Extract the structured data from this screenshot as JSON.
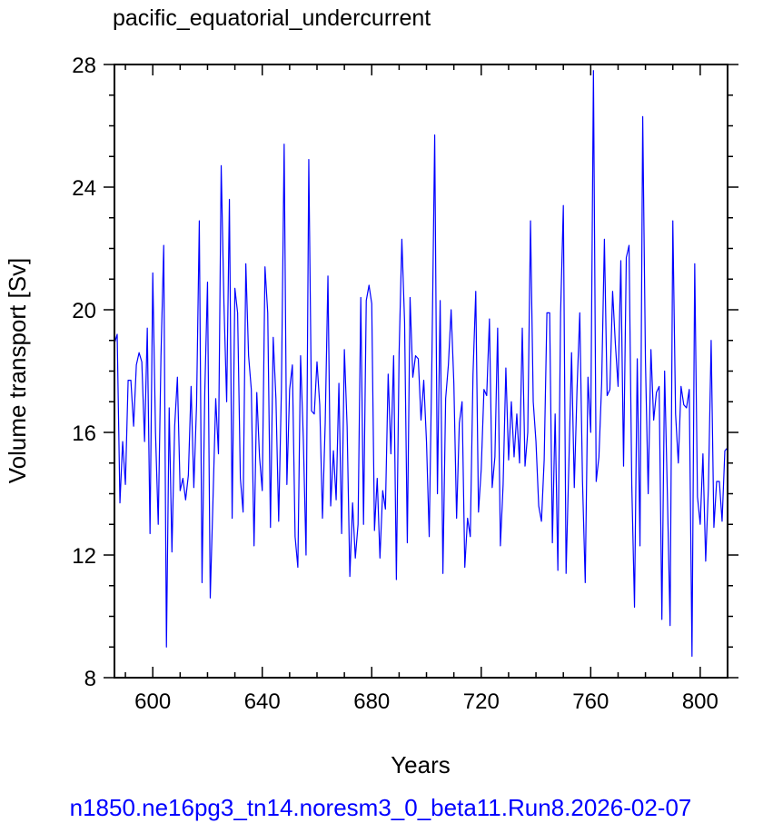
{
  "colors": {
    "line": "#0000ff",
    "axis": "#000000",
    "background": "#ffffff",
    "caption": "#0000ff"
  },
  "caption": "n1850.ne16pg3_tn14.noresm3_0_beta11.Run8.2026-02-07",
  "chart_data": {
    "type": "line",
    "title": "pacific_equatorial_undercurrent",
    "xlabel": "Years",
    "ylabel": "Volume transport [Sv]",
    "xlim": [
      586,
      810
    ],
    "ylim": [
      8,
      28
    ],
    "xticks": [
      600,
      640,
      680,
      720,
      760,
      800
    ],
    "xtick_labels": [
      "600",
      "640",
      "680",
      "720",
      "760",
      "800"
    ],
    "yticks": [
      8,
      12,
      16,
      20,
      24,
      28
    ],
    "ytick_labels": [
      "8",
      "12",
      "16",
      "20",
      "24",
      "28"
    ],
    "grid": false,
    "series": [
      {
        "x": [
          586,
          587,
          588,
          589,
          590,
          591,
          592,
          593,
          594,
          595,
          596,
          597,
          598,
          599,
          600,
          601,
          602,
          603,
          604,
          605,
          606,
          607,
          608,
          609,
          610,
          611,
          612,
          613,
          614,
          615,
          616,
          617,
          618,
          619,
          620,
          621,
          622,
          623,
          624,
          625,
          626,
          627,
          628,
          629,
          630,
          631,
          632,
          633,
          634,
          635,
          636,
          637,
          638,
          639,
          640,
          641,
          642,
          643,
          644,
          645,
          646,
          647,
          648,
          649,
          650,
          651,
          652,
          653,
          654,
          655,
          656,
          657,
          658,
          659,
          660,
          661,
          662,
          663,
          664,
          665,
          666,
          667,
          668,
          669,
          670,
          671,
          672,
          673,
          674,
          675,
          676,
          677,
          678,
          679,
          680,
          681,
          682,
          683,
          684,
          685,
          686,
          687,
          688,
          689,
          690,
          691,
          692,
          693,
          694,
          695,
          696,
          697,
          698,
          699,
          700,
          701,
          702,
          703,
          704,
          705,
          706,
          707,
          708,
          709,
          710,
          711,
          712,
          713,
          714,
          715,
          716,
          717,
          718,
          719,
          720,
          721,
          722,
          723,
          724,
          725,
          726,
          727,
          728,
          729,
          730,
          731,
          732,
          733,
          734,
          735,
          736,
          737,
          738,
          739,
          740,
          741,
          742,
          743,
          744,
          745,
          746,
          747,
          748,
          749,
          750,
          751,
          752,
          753,
          754,
          755,
          756,
          757,
          758,
          759,
          760,
          761,
          762,
          763,
          764,
          765,
          766,
          767,
          768,
          769,
          770,
          771,
          772,
          773,
          774,
          775,
          776,
          777,
          778,
          779,
          780,
          781,
          782,
          783,
          784,
          785,
          786,
          787,
          788,
          789,
          790,
          791,
          792,
          793,
          794,
          795,
          796,
          797,
          798,
          799,
          800,
          801,
          802,
          803,
          804,
          805,
          806,
          807,
          808,
          809,
          810
        ],
        "values": [
          18.9,
          19.2,
          13.7,
          15.7,
          14.3,
          17.7,
          17.7,
          16.2,
          18.2,
          18.6,
          18.3,
          15.7,
          19.4,
          12.7,
          21.2,
          16.0,
          13.0,
          18.5,
          22.1,
          9.0,
          16.8,
          12.1,
          16.2,
          17.8,
          14.1,
          14.5,
          13.8,
          14.6,
          17.5,
          14.2,
          16.9,
          22.9,
          11.1,
          17.3,
          20.9,
          10.6,
          13.8,
          17.1,
          15.3,
          24.7,
          20.2,
          17.0,
          23.6,
          13.2,
          20.7,
          19.9,
          14.5,
          13.4,
          21.5,
          18.5,
          17.4,
          12.3,
          17.3,
          15.2,
          14.1,
          21.4,
          19.9,
          12.9,
          19.1,
          17.1,
          13.1,
          17.4,
          25.4,
          14.3,
          17.4,
          18.2,
          12.6,
          11.6,
          18.5,
          15.8,
          12.0,
          24.9,
          16.7,
          16.6,
          18.3,
          16.9,
          13.2,
          16.3,
          21.1,
          13.6,
          15.4,
          13.8,
          17.6,
          12.7,
          18.7,
          16.2,
          11.3,
          13.7,
          11.9,
          13.0,
          20.4,
          13.0,
          20.3,
          20.8,
          20.2,
          12.8,
          14.5,
          11.9,
          14.1,
          13.5,
          17.9,
          15.3,
          18.5,
          11.2,
          18.6,
          22.3,
          19.6,
          12.4,
          20.4,
          17.8,
          18.5,
          18.4,
          16.4,
          17.7,
          15.7,
          12.6,
          18.5,
          25.7,
          14.0,
          20.3,
          11.4,
          17.1,
          18.2,
          20.0,
          17.6,
          13.2,
          16.3,
          17.0,
          11.6,
          13.2,
          12.6,
          17.9,
          20.6,
          13.4,
          14.8,
          17.4,
          17.2,
          19.7,
          14.2,
          15.2,
          19.4,
          12.3,
          14.3,
          18.1,
          15.1,
          17.0,
          15.2,
          16.6,
          15.0,
          19.4,
          14.9,
          16.0,
          22.9,
          17.0,
          15.7,
          13.6,
          13.1,
          15.1,
          19.9,
          19.9,
          12.4,
          16.6,
          11.5,
          19.9,
          23.4,
          11.4,
          14.9,
          18.6,
          14.2,
          17.4,
          19.9,
          14.4,
          11.1,
          17.8,
          16.0,
          27.8,
          14.4,
          15.2,
          17.6,
          22.3,
          17.2,
          17.4,
          20.6,
          18.9,
          17.5,
          21.6,
          14.9,
          21.7,
          22.1,
          14.3,
          10.3,
          18.4,
          12.3,
          26.3,
          18.3,
          14.0,
          18.7,
          16.4,
          17.3,
          17.5,
          9.9,
          18.0,
          14.0,
          9.7,
          22.9,
          16.6,
          15.0,
          17.5,
          16.9,
          16.8,
          17.4,
          8.7,
          21.5,
          13.9,
          13.0,
          15.3,
          11.8,
          14.2,
          19.0,
          12.9,
          14.4,
          14.4,
          13.1,
          15.4,
          15.5
        ]
      }
    ]
  }
}
